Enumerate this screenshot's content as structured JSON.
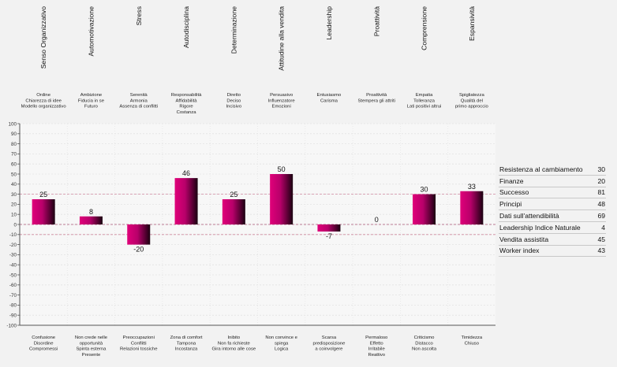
{
  "chart_data": {
    "type": "bar",
    "categories": [
      "Senso Organizzativo",
      "Automotivazione",
      "Stress",
      "Autodisciplina",
      "Determinazione",
      "Attitudine alla vendita",
      "Leadership",
      "Proattività",
      "Comprensione",
      "Espansività"
    ],
    "values": [
      25,
      8,
      -20,
      46,
      25,
      50,
      -7,
      0,
      30,
      33
    ],
    "value_labels": [
      "25",
      "8",
      "-20",
      "46",
      "25",
      "50",
      "-7",
      "0",
      "30",
      "33"
    ],
    "positive_descriptions": [
      [
        "Ordine",
        "Chiarezza di idee",
        "Modello organizzativo"
      ],
      [
        "Ambizione",
        "Fiducia in se",
        "Futuro"
      ],
      [
        "Serenità",
        "Armonia",
        "Assenza di conflitti"
      ],
      [
        "Responsabilità",
        "Affidabilità",
        "Rigore",
        "Costanza"
      ],
      [
        "Diretto",
        "Deciso",
        "Incisivo"
      ],
      [
        "Persuasivo",
        "Influenzatore",
        "Emozioni"
      ],
      [
        "Entusiasmo",
        "Carisma"
      ],
      [
        "Proattività",
        "Stempera gli attriti"
      ],
      [
        "Empatia",
        "Tolleranza",
        "Lati positivi altrui"
      ],
      [
        "Spigliatezza",
        "Qualità del",
        "primo approccio"
      ]
    ],
    "negative_descriptions": [
      [
        "Confusione",
        "Disordine",
        "Compromessi"
      ],
      [
        "Non crede nelle",
        "opportunità",
        "Spinta esterna",
        "Presente"
      ],
      [
        "Preoccupazioni",
        "Conflitti",
        "Relazioni tossiche"
      ],
      [
        "Zona di comfort",
        "Tampona",
        "Incostanza"
      ],
      [
        "Inibito",
        "Non fa richieste",
        "Gira intorno alle cose"
      ],
      [
        "Non convince e",
        "spiega",
        "Logica"
      ],
      [
        "Scarsa",
        "predisposizione",
        "a coinvolgere"
      ],
      [
        "Permaloso",
        "Effetto",
        "Irritabile",
        "Reattivo"
      ],
      [
        "Criticismo",
        "Distacco",
        "Non ascolta"
      ],
      [
        "Timidezza",
        "Chiuso"
      ]
    ],
    "y_ticks": [
      "100",
      "90",
      "80",
      "70",
      "60",
      "50",
      "40",
      "30",
      "20",
      "10",
      "0",
      "-10",
      "-20",
      "-30",
      "-40",
      "-50",
      "-60",
      "-70",
      "-80",
      "-90",
      "-100"
    ],
    "ylim": [
      -100,
      100
    ],
    "reference_lines": [
      30,
      -10
    ],
    "grid": true,
    "colors": {
      "bar_start": "#e0007a",
      "bar_end": "#1a0010",
      "reference": "#d08aa0",
      "zero": "#aa5577"
    }
  },
  "side_panel": {
    "rows": [
      {
        "label": "Resistenza al cambiamento",
        "value": "30"
      },
      {
        "label": "Finanze",
        "value": "20"
      },
      {
        "label": "Successo",
        "value": "81"
      },
      {
        "label": "Principi",
        "value": "48"
      },
      {
        "label": "Dati sull'attendibilità",
        "value": "69"
      },
      {
        "label": "Leadership Indice Naturale",
        "value": "4"
      },
      {
        "label": "Vendita assistita",
        "value": "45"
      },
      {
        "label": "Worker index",
        "value": "43"
      }
    ]
  }
}
